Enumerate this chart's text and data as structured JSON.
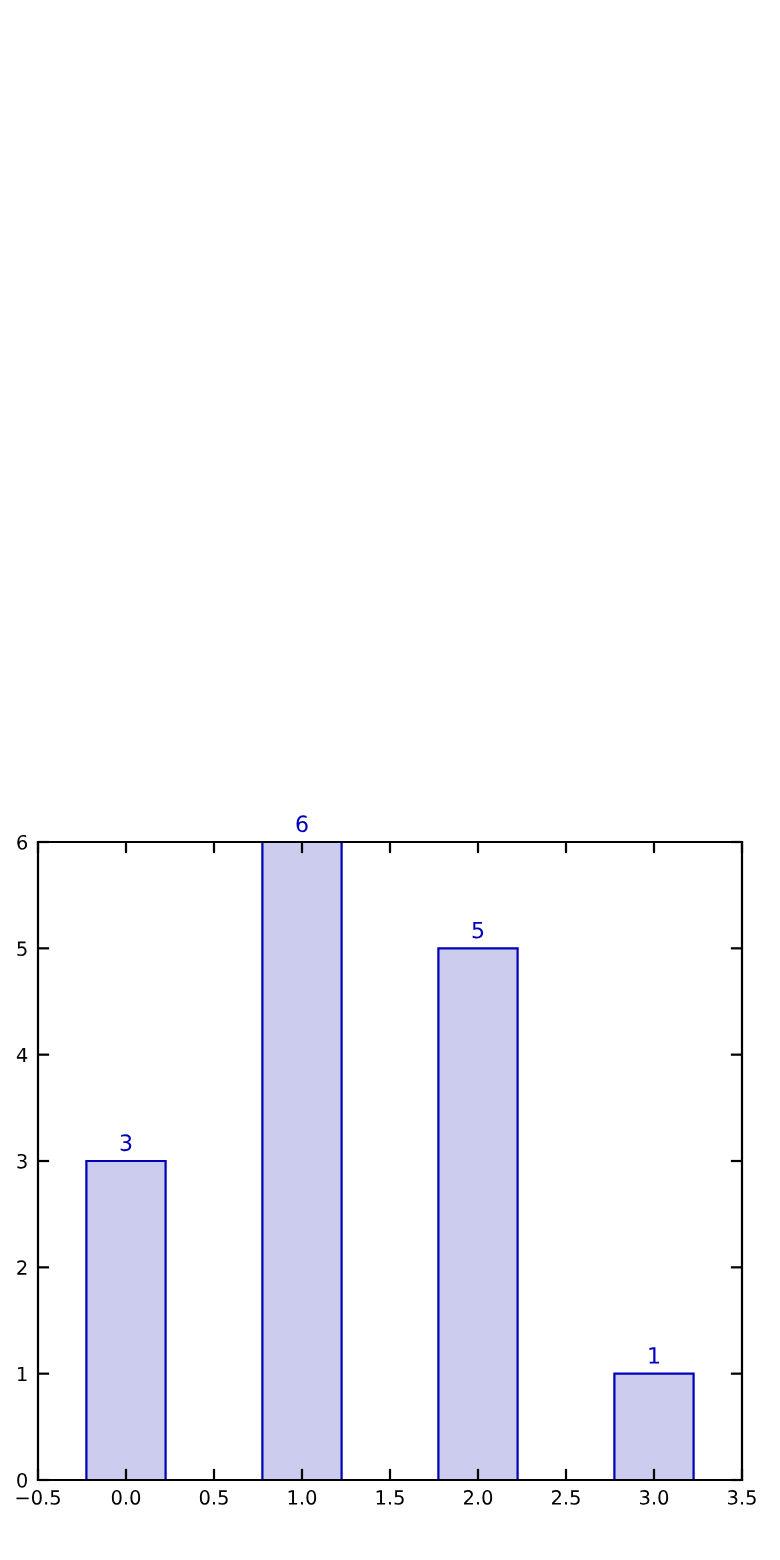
{
  "chart_data": {
    "type": "bar",
    "x": [
      0,
      1,
      2,
      3
    ],
    "values": [
      3,
      6,
      5,
      1
    ],
    "color": "#ccccee",
    "data_labels": true,
    "xlim": [
      -0.5,
      3.5
    ],
    "ylim": [
      0,
      6
    ],
    "xticks": [
      {
        "value": -0.5,
        "label": "−0.5"
      },
      {
        "value": 0,
        "label": "0.0"
      },
      0.5,
      {
        "value": 1,
        "label": "1.0"
      },
      1.5,
      {
        "value": 2,
        "label": "2.0"
      },
      2.5,
      {
        "value": 3,
        "label": "3.0"
      },
      3.5
    ],
    "yticks": [
      0,
      1,
      2,
      3,
      4,
      5,
      6
    ],
    "grid": false
  }
}
